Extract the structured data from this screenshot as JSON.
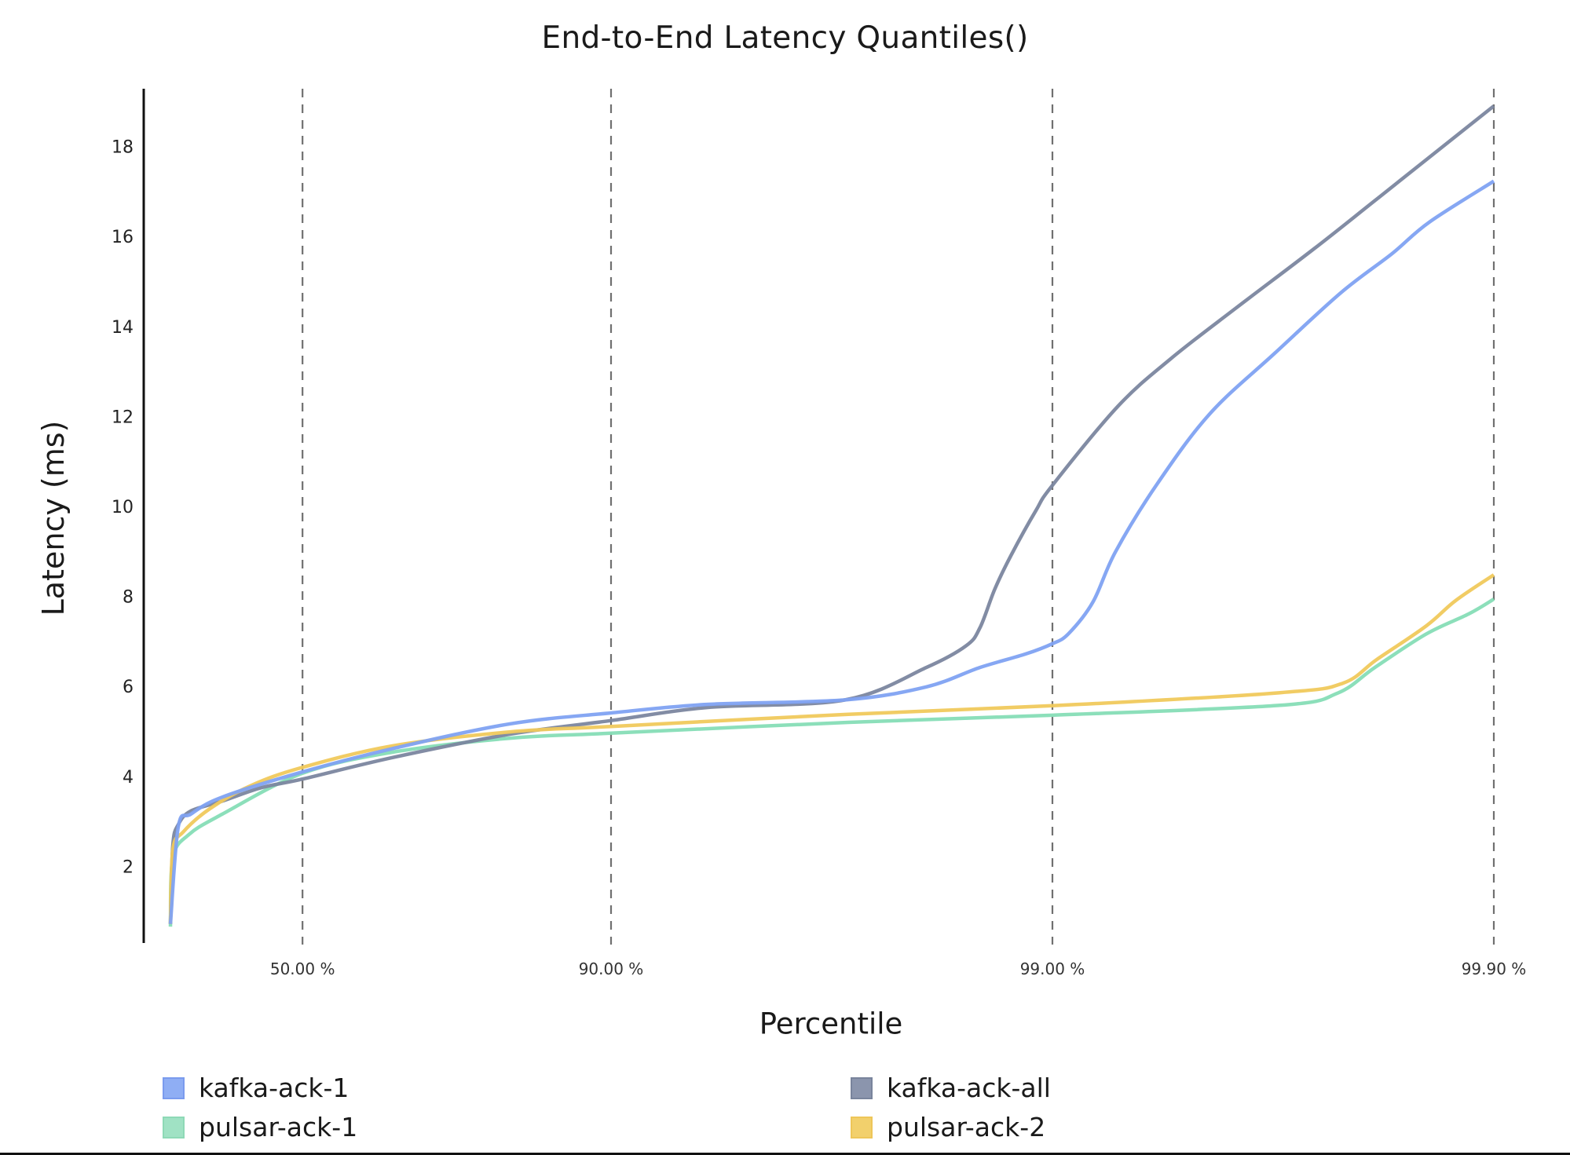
{
  "title": "End-to-End Latency Quantiles()",
  "axes": {
    "ylabel": "Latency (ms)",
    "xlabel": "Percentile",
    "yticks": [
      "2",
      "4",
      "6",
      "8",
      "10",
      "12",
      "14",
      "16",
      "18"
    ],
    "xticks": [
      "50.00 %",
      "90.00 %",
      "99.00 %",
      "99.90 %"
    ]
  },
  "legend": [
    {
      "label": "kafka-ack-1",
      "color": "#88A9F3"
    },
    {
      "label": "kafka-ack-all",
      "color": "#8690A8"
    },
    {
      "label": "pulsar-ack-1",
      "color": "#A0E2C4"
    },
    {
      "label": "pulsar-ack-2",
      "color": "#F2CF6A"
    }
  ],
  "chart_data": {
    "type": "line",
    "title": "End-to-End Latency Quantiles()",
    "xlabel": "Percentile",
    "ylabel": "Latency (ms)",
    "x_scale": "log(1/(1-p))",
    "x_ticks": [
      50,
      90,
      99,
      99.9
    ],
    "x_tick_labels": [
      "50.00 %",
      "90.00 %",
      "99.00 %",
      "99.90 %"
    ],
    "y_ticks": [
      2,
      4,
      6,
      8,
      10,
      12,
      14,
      16,
      18
    ],
    "ylim": [
      0,
      19
    ],
    "grid": "vertical dashed lines at x ticks",
    "legend_position": "bottom",
    "series": [
      {
        "name": "kafka-ack-1",
        "color": "#7FA2F2",
        "x": [
          0.41,
          4.41,
          10.47,
          24.0,
          50.0,
          68.8,
          83.1,
          90.0,
          93.93,
          97.05,
          98.07,
          98.54,
          98.85,
          99.0,
          99.08,
          99.19,
          99.28,
          99.42,
          99.56,
          99.686,
          99.778,
          99.83,
          99.86,
          99.9
        ],
        "y": [
          0.72,
          2.88,
          3.16,
          3.54,
          4.1,
          4.62,
          5.17,
          5.41,
          5.6,
          5.7,
          5.99,
          6.42,
          6.72,
          6.95,
          7.17,
          7.87,
          8.99,
          10.49,
          12.06,
          13.4,
          14.75,
          15.62,
          16.32,
          17.23
        ]
      },
      {
        "name": "kafka-ack-all",
        "color": "#7B869F",
        "x": [
          0.41,
          1.62,
          4.41,
          10.47,
          24.0,
          38.1,
          50.0,
          68.8,
          83.1,
          90.0,
          93.93,
          97.05,
          98.07,
          98.43,
          98.54,
          98.65,
          98.76,
          98.91,
          99.0,
          99.29,
          99.46,
          99.615,
          99.744,
          99.819,
          99.9
        ],
        "y": [
          0.72,
          2.46,
          2.93,
          3.23,
          3.45,
          3.75,
          3.94,
          4.42,
          4.94,
          5.24,
          5.53,
          5.7,
          6.42,
          6.9,
          7.3,
          8.17,
          8.92,
          9.91,
          10.47,
          12.23,
          13.28,
          14.4,
          15.72,
          16.89,
          18.9
        ]
      },
      {
        "name": "pulsar-ack-1",
        "color": "#86DDB6",
        "x": [
          0.41,
          1.62,
          9.36,
          24.0,
          50.0,
          68.8,
          83.1,
          90.0,
          97.1,
          99.0,
          99.695,
          99.774,
          99.814,
          99.858,
          99.886,
          99.9
        ],
        "y": [
          0.66,
          2.18,
          2.7,
          3.16,
          4.07,
          4.54,
          4.85,
          4.96,
          5.2,
          5.36,
          5.58,
          5.85,
          6.42,
          7.17,
          7.61,
          7.94
        ]
      },
      {
        "name": "pulsar-ack-2",
        "color": "#F0C95C",
        "x": [
          0.41,
          1.62,
          6.72,
          18.86,
          34.7,
          50.0,
          68.8,
          83.1,
          90.0,
          97.1,
          99.0,
          99.695,
          99.78,
          99.816,
          99.858,
          99.878,
          99.9
        ],
        "y": [
          0.72,
          2.36,
          2.76,
          3.28,
          3.8,
          4.2,
          4.68,
          4.99,
          5.11,
          5.38,
          5.57,
          5.86,
          6.07,
          6.6,
          7.35,
          7.91,
          8.48
        ]
      }
    ]
  }
}
